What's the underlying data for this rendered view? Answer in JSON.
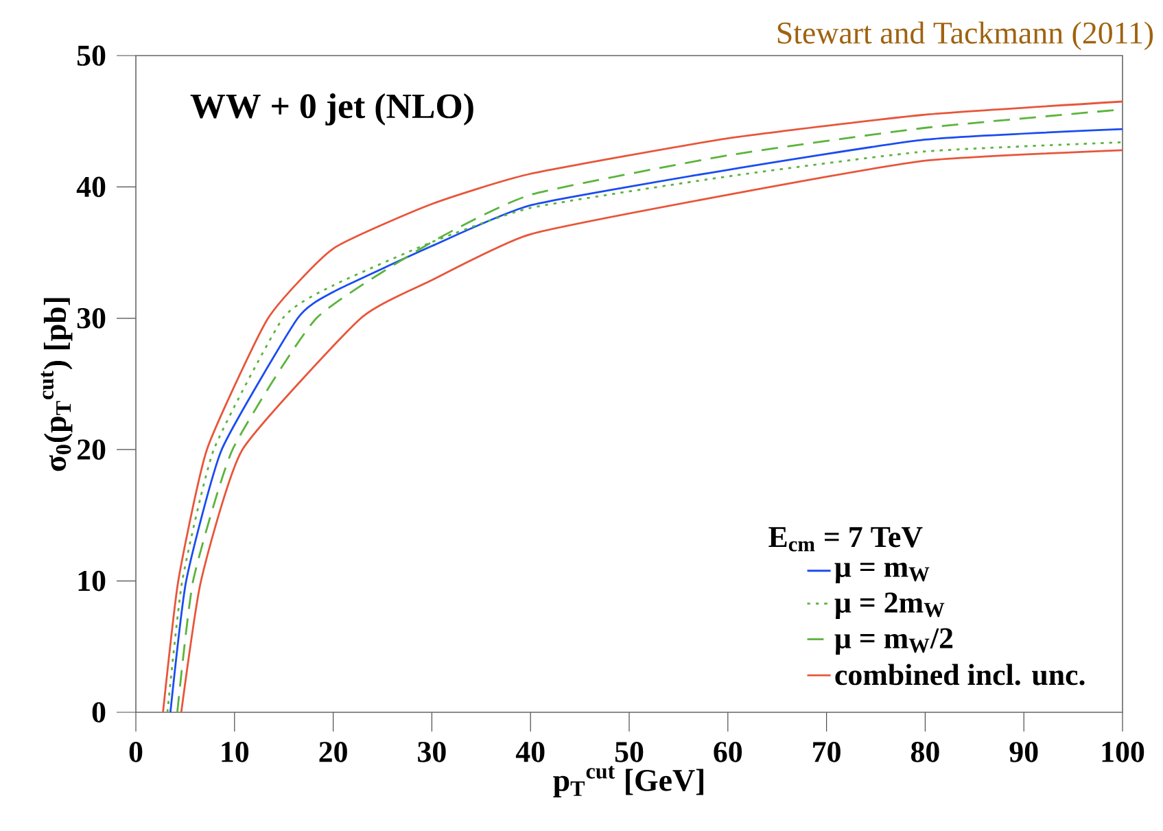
{
  "chart_data": {
    "type": "line",
    "title": "WW + 0 jet (NLO)",
    "xlabel": "p$_{T}$$^{cut}$ [GeV]",
    "ylabel": "σ$_{0}$(p$_{T}$$^{cut}$) [pb]",
    "legend_title": "E$_{cm}$ = 7 TeV",
    "annotations": [
      "Stewart and Tackmann (2011)"
    ],
    "xlim": [
      0,
      100
    ],
    "ylim": [
      0,
      50
    ],
    "xticks": [
      0,
      10,
      20,
      30,
      40,
      50,
      60,
      70,
      80,
      90,
      100
    ],
    "yticks": [
      0,
      10,
      20,
      30,
      40,
      50
    ],
    "legend": "bottom right",
    "grid": false,
    "series": [
      {
        "name": "μ = m$_{W}$",
        "color": "#1a4cf0",
        "line_style": "solid",
        "x": [
          3.5,
          5.1,
          8.7,
          16.4,
          20,
          30,
          40,
          60,
          80,
          100
        ],
        "values": [
          0,
          10,
          20,
          30,
          32,
          35.5,
          38.6,
          41.3,
          43.6,
          44.4
        ]
      },
      {
        "name": "μ = 2m$_{W}$",
        "color": "#5ab43c",
        "line_style": "dotted",
        "x": [
          3.2,
          4.7,
          7.9,
          14.9,
          20,
          30,
          40,
          60,
          80,
          100
        ],
        "values": [
          0,
          10,
          20,
          30,
          32.5,
          35.8,
          38.4,
          40.8,
          42.7,
          43.4
        ]
      },
      {
        "name": "μ = m$_{W}$/2",
        "color": "#5ab43c",
        "line_style": "dashed",
        "x": [
          4.2,
          5.8,
          9.8,
          18.3,
          30,
          40,
          60,
          80,
          100
        ],
        "values": [
          0,
          10,
          20,
          30,
          35.8,
          39.4,
          42.4,
          44.5,
          45.9
        ]
      },
      {
        "name": "combined incl. unc.",
        "color": "#e8553a",
        "line_style": "solid",
        "x": [
          4.6,
          6.6,
          10.8,
          22.8,
          30,
          40,
          60,
          80,
          100
        ],
        "values": [
          0,
          10,
          20,
          30,
          32.9,
          36.4,
          39.4,
          42.0,
          42.8
        ]
      },
      {
        "color": "#e8553a",
        "line_style": "solid",
        "x": [
          2.75,
          4.3,
          7.2,
          13.4,
          20,
          30,
          40,
          60,
          80,
          100
        ],
        "values": [
          0,
          10,
          20,
          30,
          35.3,
          38.7,
          41.0,
          43.7,
          45.5,
          46.5
        ]
      }
    ]
  }
}
